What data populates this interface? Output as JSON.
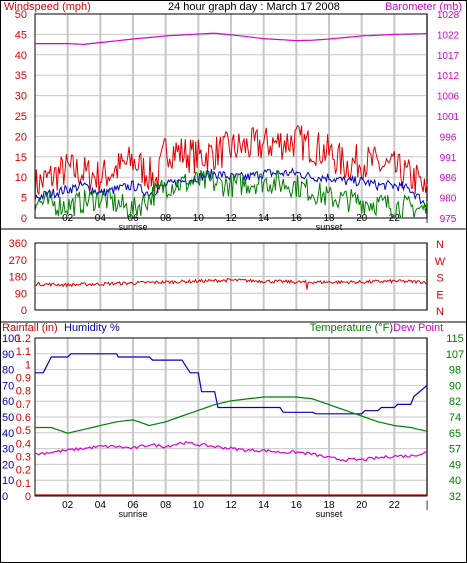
{
  "colors": {
    "red": "#e00000",
    "magenta": "#d800d8",
    "blue": "#0000c8",
    "green": "#008000",
    "grid": "#c8c8c8",
    "frame": "#000000"
  },
  "header": {
    "left_label": "Windspeed (mph)",
    "title": "24 hour graph day : March 17 2008",
    "right_label": "Barometer (mb)"
  },
  "x_axis": {
    "tick_labels": [
      "02",
      "04",
      "06",
      "08",
      "10",
      "12",
      "14",
      "16",
      "18",
      "20",
      "22",
      "|"
    ],
    "sunrise_label": "sunrise",
    "sunset_label": "sunset"
  },
  "chart_data": [
    {
      "type": "line",
      "title": "24 hour graph day : March 17 2008",
      "x_unit": "hour of day",
      "xlim": [
        0,
        24
      ],
      "ylabel_left": "Windspeed (mph)",
      "ylim_left": [
        0,
        50
      ],
      "yticks_left": [
        0,
        5,
        10,
        15,
        20,
        25,
        30,
        35,
        40,
        45,
        50
      ],
      "ylabel_right": "Barometer (mb)",
      "ylim_right": [
        975,
        1028
      ],
      "yticks_right": [
        975,
        980,
        986,
        991,
        996,
        1001,
        1006,
        1012,
        1017,
        1022,
        1028
      ],
      "grid": true,
      "series": [
        {
          "key": "gust",
          "color": "red",
          "axis": "left",
          "x": [
            0,
            2,
            4,
            6,
            7.5,
            8,
            10,
            12,
            14,
            16,
            18,
            19,
            20,
            22,
            23.5,
            24
          ],
          "values": [
            8,
            12,
            10,
            14,
            9,
            17,
            15,
            17,
            18,
            19,
            16,
            13,
            14,
            12,
            9,
            5
          ]
        },
        {
          "key": "average",
          "color": "blue",
          "axis": "left",
          "x": [
            0,
            1,
            2,
            3,
            4,
            5,
            6,
            7,
            8,
            9,
            10,
            11,
            12,
            13,
            14,
            15,
            16,
            17,
            18,
            19,
            20,
            21,
            22,
            23,
            24
          ],
          "values": [
            5,
            6,
            7,
            8,
            6,
            7,
            8,
            6,
            8,
            9,
            10,
            11,
            10,
            10,
            11,
            11,
            11,
            10,
            10,
            9,
            9,
            8,
            8,
            7,
            3
          ]
        },
        {
          "key": "low",
          "color": "green",
          "axis": "left",
          "x": [
            0,
            2,
            4,
            6,
            8,
            10,
            12,
            14,
            16,
            18,
            20,
            22,
            24
          ],
          "values": [
            4,
            3,
            5,
            2,
            8,
            9,
            8,
            9,
            8,
            5,
            4,
            3,
            2
          ]
        },
        {
          "key": "barometer",
          "color": "magenta",
          "axis": "right",
          "x": [
            0,
            2,
            3,
            4,
            6,
            8,
            10,
            11,
            12,
            14,
            16,
            17,
            18,
            20,
            22,
            24
          ],
          "values": [
            1020.3,
            1020.3,
            1020.1,
            1020.6,
            1021.5,
            1022.3,
            1022.8,
            1023,
            1022.6,
            1021.6,
            1021.1,
            1021.2,
            1021.5,
            1022.3,
            1022.7,
            1022.9
          ]
        }
      ]
    },
    {
      "type": "line",
      "x_unit": "hour of day",
      "xlim": [
        0,
        24
      ],
      "ylim": [
        0,
        360
      ],
      "yticks_left": [
        0,
        90,
        180,
        270,
        360
      ],
      "right_labels": [
        "N",
        "W",
        "S",
        "E",
        "N"
      ],
      "grid": true,
      "series": [
        {
          "key": "wind_direction",
          "color": "red",
          "x": [
            0,
            2,
            4,
            6,
            8,
            10,
            12,
            14,
            16,
            18,
            20,
            22,
            24
          ],
          "values": [
            140,
            135,
            140,
            145,
            150,
            155,
            160,
            155,
            150,
            150,
            150,
            155,
            150
          ]
        }
      ]
    },
    {
      "type": "line",
      "xlim": [
        0,
        24
      ],
      "x_unit": "hour of day",
      "axis_titles": {
        "rainfall": "Rainfall (in)",
        "humidity": "Humidity %",
        "temperature": "Temperature (°F)",
        "dew_point": "Dew Point"
      },
      "yticks_humidity": [
        0,
        10,
        20,
        30,
        40,
        50,
        60,
        70,
        80,
        90,
        100
      ],
      "yticks_rainfall": [
        0,
        0.1,
        0.2,
        0.3,
        0.4,
        0.5,
        0.6,
        0.7,
        0.8,
        0.9,
        1,
        1.1,
        1.2
      ],
      "yticks_temperature": [
        32,
        40,
        49,
        57,
        65,
        74,
        82,
        90,
        98,
        107,
        115
      ],
      "ylim_humidity": [
        0,
        100
      ],
      "ylim_rainfall": [
        0,
        1.2
      ],
      "ylim_temperature": [
        32,
        115
      ],
      "grid": true,
      "series": [
        {
          "key": "humidity",
          "color": "blue",
          "axis": "humidity",
          "x": [
            0,
            0.5,
            1,
            2,
            2.2,
            5,
            5.1,
            7,
            7.2,
            9,
            9.5,
            10,
            10.2,
            11,
            11.2,
            15,
            15.2,
            17,
            17.2,
            19,
            19.2,
            20,
            20.2,
            21,
            21.2,
            22,
            22.2,
            23,
            23.2,
            24
          ],
          "values": [
            78,
            78,
            88,
            88,
            90,
            90,
            88,
            88,
            86,
            86,
            78,
            78,
            66,
            66,
            56,
            56,
            53,
            53,
            52,
            52,
            52,
            52,
            54,
            54,
            56,
            56,
            58,
            58,
            63,
            70
          ]
        },
        {
          "key": "temperature",
          "color": "green",
          "axis": "temperature",
          "x": [
            0,
            1,
            2,
            3,
            4,
            5,
            6,
            7,
            8,
            9,
            10,
            11,
            12,
            13,
            14,
            15,
            16,
            17,
            18,
            19,
            20,
            21,
            22,
            23,
            24
          ],
          "values": [
            68,
            68,
            65,
            67,
            69,
            71,
            72,
            69,
            71,
            74,
            77,
            80,
            82,
            83,
            84,
            84,
            84,
            83,
            80,
            77,
            74,
            71,
            69,
            68,
            66
          ]
        },
        {
          "key": "dew_point",
          "color": "magenta",
          "axis": "temperature",
          "x": [
            0,
            1,
            2,
            3,
            4,
            5,
            6,
            7,
            8,
            9,
            10,
            11,
            12,
            13,
            14,
            15,
            16,
            17,
            18,
            19,
            20,
            21,
            22,
            23,
            24
          ],
          "values": [
            54,
            55,
            56,
            57,
            58,
            58,
            57,
            59,
            58,
            60,
            59,
            58,
            57,
            56,
            56,
            55,
            55,
            54,
            52,
            51,
            51,
            52,
            53,
            53,
            55
          ]
        },
        {
          "key": "rainfall",
          "color": "red",
          "axis": "rainfall",
          "x": [
            0,
            24
          ],
          "values": [
            0,
            0
          ]
        }
      ]
    }
  ]
}
